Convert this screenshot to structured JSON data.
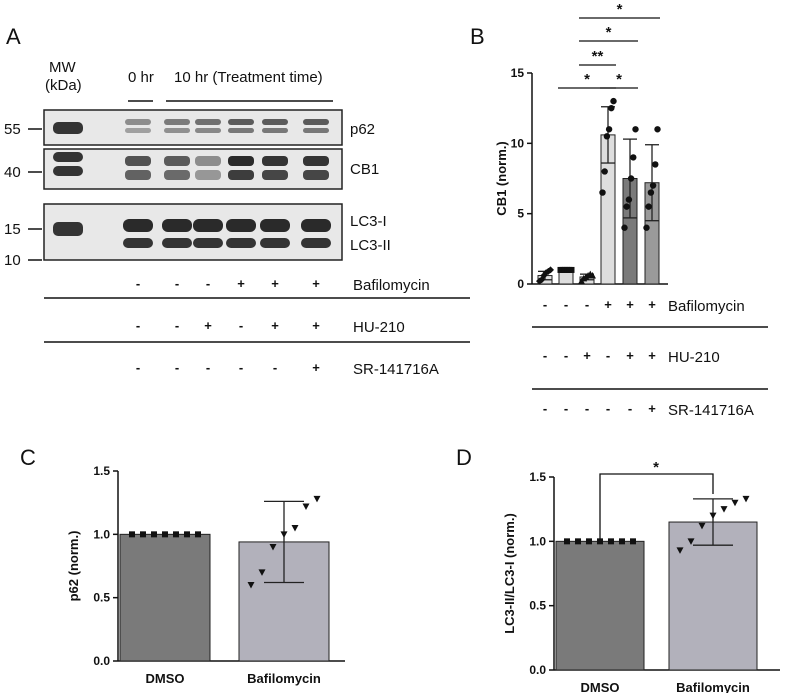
{
  "colors": {
    "dark_bar": "#7a7a7a",
    "mid_bar": "#9a9a9a",
    "light_bar": "#b2b1bb",
    "lightest_bar": "#dedede",
    "blot_bg": "#e8e8e8",
    "band": "#202020"
  },
  "panels": {
    "a": "A",
    "b": "B",
    "c": "C",
    "d": "D"
  },
  "panel_a": {
    "mw_label_1": "MW",
    "mw_label_2": "(kDa)",
    "time_0": "0 hr",
    "time_10": "10 hr (Treatment time)",
    "mw_markers": [
      "55",
      "40",
      "15",
      "10"
    ],
    "proteins": {
      "p62": "p62",
      "cb1": "CB1",
      "lc3_1": "LC3-I",
      "lc3_2": "LC3-II"
    },
    "treatments": [
      {
        "name": "Bafilomycin",
        "signs": [
          "-",
          "-",
          "-",
          "+",
          "+",
          "+"
        ]
      },
      {
        "name": "HU-210",
        "signs": [
          "-",
          "-",
          "+",
          "-",
          "+",
          "+"
        ]
      },
      {
        "name": "SR-141716A",
        "signs": [
          "-",
          "-",
          "-",
          "-",
          "-",
          "+"
        ]
      }
    ]
  },
  "panel_b": {
    "treatments": [
      {
        "name": "Bafilomycin",
        "signs": [
          "-",
          "-",
          "-",
          "+",
          "+",
          "+"
        ]
      },
      {
        "name": "HU-210",
        "signs": [
          "-",
          "-",
          "+",
          "-",
          "+",
          "+"
        ]
      },
      {
        "name": "SR-141716A",
        "signs": [
          "-",
          "-",
          "-",
          "-",
          "-",
          "+"
        ]
      }
    ],
    "significance": [
      "*",
      "*",
      "**",
      "*",
      "*"
    ]
  },
  "chart_data": [
    {
      "panel": "B",
      "type": "bar",
      "ylabel": "CB1 (norm.)",
      "ylim": [
        0,
        15
      ],
      "yticks": [
        "0",
        "5",
        "10",
        "15"
      ],
      "values": [
        0.6,
        1.0,
        0.5,
        10.6,
        7.5,
        7.2
      ],
      "errors": [
        0.3,
        0.05,
        0.2,
        2.0,
        2.8,
        2.7
      ],
      "points": [
        [
          0.2,
          0.3,
          0.6,
          0.8,
          0.9,
          1.0
        ],
        [
          1.0,
          1.0,
          1.0,
          1.0,
          1.0,
          1.0
        ],
        [
          0.2,
          0.4,
          0.5,
          0.6,
          0.7,
          0.6
        ],
        [
          6.5,
          8.0,
          10.5,
          11.0,
          12.5,
          13.0
        ],
        [
          4.0,
          5.5,
          6.0,
          7.5,
          9.0,
          11.0
        ],
        [
          4.0,
          5.5,
          6.5,
          7.0,
          8.5,
          11.0
        ]
      ]
    },
    {
      "panel": "C",
      "type": "bar",
      "categories": [
        "DMSO",
        "Bafilomycin"
      ],
      "values": [
        1.0,
        0.94
      ],
      "errors": [
        0.0,
        0.32
      ],
      "ylabel": "p62 (norm.)",
      "ylim": [
        0,
        1.5
      ],
      "yticks": [
        "0.0",
        "0.5",
        "1.0",
        "1.5"
      ],
      "points": [
        [
          1.0,
          1.0,
          1.0,
          1.0,
          1.0,
          1.0,
          1.0
        ],
        [
          0.6,
          0.7,
          0.9,
          1.0,
          1.05,
          1.22,
          1.28
        ]
      ]
    },
    {
      "panel": "D",
      "type": "bar",
      "categories": [
        "DMSO",
        "Bafilomycin"
      ],
      "values": [
        1.0,
        1.15
      ],
      "errors": [
        0.0,
        0.18
      ],
      "ylabel": "LC3-II/LC3-I (norm.)",
      "ylim": [
        0,
        1.5
      ],
      "yticks": [
        "0.0",
        "0.5",
        "1.0",
        "1.5"
      ],
      "points": [
        [
          1.0,
          1.0,
          1.0,
          1.0,
          1.0,
          1.0,
          1.0
        ],
        [
          0.93,
          1.0,
          1.12,
          1.2,
          1.25,
          1.3,
          1.33
        ]
      ],
      "significance": "*"
    }
  ]
}
